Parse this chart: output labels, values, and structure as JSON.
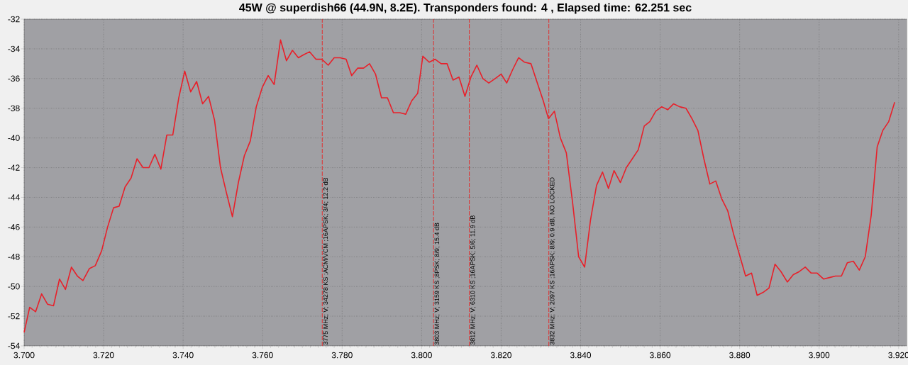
{
  "chart_data": {
    "type": "line",
    "title": "45W @ superdish66 (44.9N, 8.2E). Transponders found: 4 , Elapsed time: 62.251 sec",
    "x": [
      3.7,
      3.7014,
      3.7029,
      3.7044,
      3.7059,
      3.7074,
      3.7089,
      3.7104,
      3.7119,
      3.7134,
      3.7148,
      3.7164,
      3.7179,
      3.7195,
      3.721,
      3.7225,
      3.7239,
      3.7254,
      3.7269,
      3.7284,
      3.7299,
      3.7314,
      3.7329,
      3.7344,
      3.7359,
      3.7374,
      3.7389,
      3.7404,
      3.7419,
      3.7434,
      3.7449,
      3.7464,
      3.7479,
      3.7494,
      3.7509,
      3.7524,
      3.7539,
      3.7554,
      3.7569,
      3.7584,
      3.7599,
      3.7614,
      3.7629,
      3.7645,
      3.766,
      3.7675,
      3.769,
      3.7703,
      3.7718,
      3.7734,
      3.7749,
      3.7765,
      3.778,
      3.7795,
      3.781,
      3.7824,
      3.7839,
      3.7854,
      3.7869,
      3.7884,
      3.7899,
      3.7914,
      3.7929,
      3.7945,
      3.796,
      3.7975,
      3.799,
      3.8003,
      3.8019,
      3.8034,
      3.8049,
      3.8064,
      3.8079,
      3.8094,
      3.8109,
      3.8124,
      3.8139,
      3.8154,
      3.8169,
      3.8185,
      3.82,
      3.8214,
      3.8229,
      3.8244,
      3.8259,
      3.8275,
      3.8291,
      3.8306,
      3.8319,
      3.8334,
      3.8349,
      3.8364,
      3.838,
      3.8395,
      3.841,
      3.8425,
      3.844,
      3.8455,
      3.847,
      3.8484,
      3.85,
      3.8515,
      3.853,
      3.8545,
      3.856,
      3.8574,
      3.8589,
      3.8604,
      3.8619,
      3.8634,
      3.8649,
      3.8665,
      3.868,
      3.8695,
      3.871,
      3.8725,
      3.874,
      3.8755,
      3.877,
      3.8785,
      3.88,
      3.8815,
      3.883,
      3.8844,
      3.8859,
      3.8874,
      3.8889,
      3.8904,
      3.892,
      3.8935,
      3.895,
      3.8965,
      3.898,
      3.8995,
      3.9011,
      3.9026,
      3.9041,
      3.9056,
      3.9071,
      3.9086,
      3.9101,
      3.9116,
      3.9131,
      3.9146,
      3.916,
      3.9175,
      3.919
    ],
    "series": [
      {
        "color": "#e8202a",
        "values": [
          -53.1,
          -51.4,
          -51.7,
          -50.5,
          -51.2,
          -51.3,
          -49.5,
          -50.2,
          -48.7,
          -49.3,
          -49.6,
          -48.8,
          -48.6,
          -47.6,
          -46.0,
          -44.7,
          -44.6,
          -43.3,
          -42.7,
          -41.4,
          -42.0,
          -42.0,
          -41.1,
          -42.1,
          -39.8,
          -39.8,
          -37.3,
          -35.5,
          -36.9,
          -36.2,
          -37.7,
          -37.2,
          -38.8,
          -42.0,
          -43.7,
          -45.3,
          -43.0,
          -41.2,
          -40.2,
          -37.9,
          -36.6,
          -35.8,
          -36.4,
          -33.4,
          -34.8,
          -34.1,
          -34.6,
          -34.4,
          -34.2,
          -34.7,
          -34.7,
          -35.1,
          -34.6,
          -34.6,
          -34.7,
          -35.8,
          -35.3,
          -35.3,
          -35.0,
          -35.7,
          -37.3,
          -37.3,
          -38.3,
          -38.3,
          -38.4,
          -37.5,
          -37.0,
          -34.5,
          -34.9,
          -34.7,
          -35.0,
          -35.0,
          -36.1,
          -35.9,
          -37.2,
          -35.9,
          -35.1,
          -36.0,
          -36.3,
          -36.0,
          -35.7,
          -36.3,
          -35.4,
          -34.6,
          -34.9,
          -35.0,
          -36.3,
          -37.5,
          -38.7,
          -38.2,
          -40.0,
          -41.0,
          -44.4,
          -48.0,
          -48.7,
          -45.5,
          -43.2,
          -42.3,
          -43.4,
          -42.2,
          -43.0,
          -42.0,
          -41.4,
          -40.8,
          -39.2,
          -38.9,
          -38.2,
          -37.9,
          -38.1,
          -37.7,
          -37.9,
          -38.0,
          -38.7,
          -39.5,
          -41.4,
          -43.1,
          -42.9,
          -44.1,
          -44.9,
          -46.5,
          -47.9,
          -49.3,
          -49.1,
          -50.6,
          -50.4,
          -50.1,
          -48.5,
          -49.0,
          -49.7,
          -49.2,
          -49.0,
          -48.7,
          -49.1,
          -49.1,
          -49.5,
          -49.4,
          -49.3,
          -49.3,
          -48.4,
          -48.3,
          -48.9,
          -48.0,
          -45.2,
          -40.6,
          -39.5,
          -38.9,
          -37.6
        ]
      }
    ],
    "xlim": [
      3.7,
      3.922
    ],
    "ylim": [
      -54,
      -32
    ],
    "xticks": [
      {
        "value": 3.7,
        "label": "3.700"
      },
      {
        "value": 3.72,
        "label": "3.720"
      },
      {
        "value": 3.74,
        "label": "3.740"
      },
      {
        "value": 3.76,
        "label": "3.760"
      },
      {
        "value": 3.78,
        "label": "3.780"
      },
      {
        "value": 3.8,
        "label": "3.800"
      },
      {
        "value": 3.82,
        "label": "3.820"
      },
      {
        "value": 3.84,
        "label": "3.840"
      },
      {
        "value": 3.86,
        "label": "3.860"
      },
      {
        "value": 3.88,
        "label": "3.880"
      },
      {
        "value": 3.9,
        "label": "3.900"
      },
      {
        "value": 3.92,
        "label": "3.920"
      }
    ],
    "yticks": [
      -54,
      -52,
      -50,
      -48,
      -46,
      -44,
      -42,
      -40,
      -38,
      -36,
      -34,
      -32
    ],
    "grid": true,
    "ref_lines": [
      {
        "axis": "x",
        "value": 3.775,
        "label": "3775 MHz; V; 34278 KS ;ACM/VCM ;16APSK; 3/4; 12.2 dB",
        "color": "#e03030",
        "line_style": "dashed"
      },
      {
        "axis": "x",
        "value": 3.803,
        "label": "3803 MHz; V; 3159 KS ;8PSK; 8/9; 15.4 dB",
        "color": "#e03030",
        "line_style": "dashed"
      },
      {
        "axis": "x",
        "value": 3.812,
        "label": "3812 MHz; V; 6310 KS ;16APSK; 5/6; 11.9 dB",
        "color": "#e03030",
        "line_style": "dashed"
      },
      {
        "axis": "x",
        "value": 3.832,
        "label": "3832 MHz; V; 2097 KS ;16APSK; 8/9; 0.9 dB, NO LOCKED",
        "color": "#e03030",
        "line_style": "dashed"
      }
    ]
  }
}
